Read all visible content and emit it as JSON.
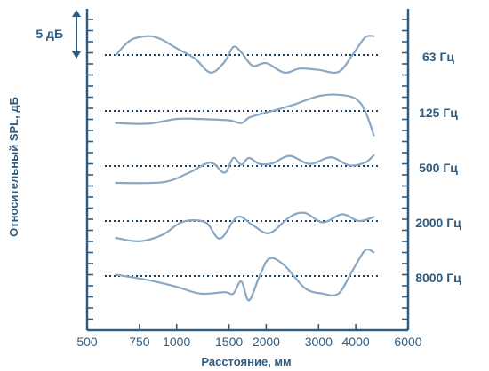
{
  "chart_data": {
    "type": "line",
    "title": "",
    "xlabel": "Расстояние, мм",
    "ylabel": "Относительный SPL, дБ",
    "scale_label": "5 дБ",
    "x_scale": "log",
    "xlim": [
      500,
      6000
    ],
    "x_ticks": [
      500,
      750,
      1000,
      1500,
      2000,
      3000,
      4000,
      6000
    ],
    "x_tick_labels": [
      "500",
      "750",
      "1000",
      "1500",
      "2000",
      "3000",
      "4000",
      "6000"
    ],
    "grid": false,
    "colors": {
      "axis": "#2f5d82",
      "curve": "#8aa8c4",
      "reference": "#1f3f5f"
    },
    "series": [
      {
        "name": "63 Гц",
        "x": [
          625,
          700,
          800,
          880,
          1000,
          1150,
          1300,
          1450,
          1550,
          1650,
          1800,
          2000,
          2300,
          2600,
          3000,
          3500,
          3900,
          4300,
          4600
        ],
        "y": [
          0,
          2.2,
          2.8,
          2.4,
          1.0,
          -0.5,
          -2.6,
          -1.0,
          1.2,
          0.4,
          -1.6,
          -1.2,
          -2.6,
          -2.0,
          -2.2,
          -2.5,
          0,
          2.6,
          2.8
        ]
      },
      {
        "name": "125 Гц",
        "x": [
          625,
          800,
          1000,
          1200,
          1500,
          1650,
          1750,
          1900,
          2100,
          2500,
          3000,
          3500,
          4000,
          4300,
          4600
        ],
        "y": [
          -1.8,
          -1.9,
          -1.2,
          -1.2,
          -1.4,
          -1.8,
          -1.0,
          -0.5,
          0,
          1.0,
          2.2,
          2.4,
          1.8,
          0,
          -3.6
        ]
      },
      {
        "name": "500 Гц",
        "x": [
          625,
          900,
          1100,
          1300,
          1450,
          1550,
          1650,
          1750,
          1900,
          2100,
          2400,
          2800,
          3300,
          3800,
          4300,
          4600
        ],
        "y": [
          -2.5,
          -2.4,
          -1.0,
          0.5,
          -1.0,
          1.2,
          0.2,
          1.2,
          0.3,
          0.4,
          1.5,
          0.3,
          1.3,
          0.1,
          0.5,
          1.6
        ]
      },
      {
        "name": "2000 Гц",
        "x": [
          625,
          750,
          900,
          1050,
          1250,
          1400,
          1600,
          1800,
          2050,
          2400,
          2700,
          3100,
          3600,
          4100,
          4600
        ],
        "y": [
          -2.5,
          -3.0,
          -2.0,
          -0.1,
          -0.2,
          -2.6,
          0.6,
          -0.6,
          -1.8,
          0.6,
          1.2,
          -0.2,
          1.0,
          0,
          0.6
        ]
      },
      {
        "name": "8000 Гц",
        "x": [
          625,
          800,
          1000,
          1200,
          1450,
          1550,
          1650,
          1750,
          1900,
          2050,
          2300,
          2700,
          3100,
          3500,
          3900,
          4300,
          4600
        ],
        "y": [
          0.2,
          -0.6,
          -1.6,
          -2.6,
          -2.4,
          -2.6,
          -0.8,
          -3.6,
          0,
          2.6,
          1.6,
          -1.8,
          -2.6,
          -2.6,
          0.8,
          3.8,
          3.5
        ]
      }
    ]
  }
}
